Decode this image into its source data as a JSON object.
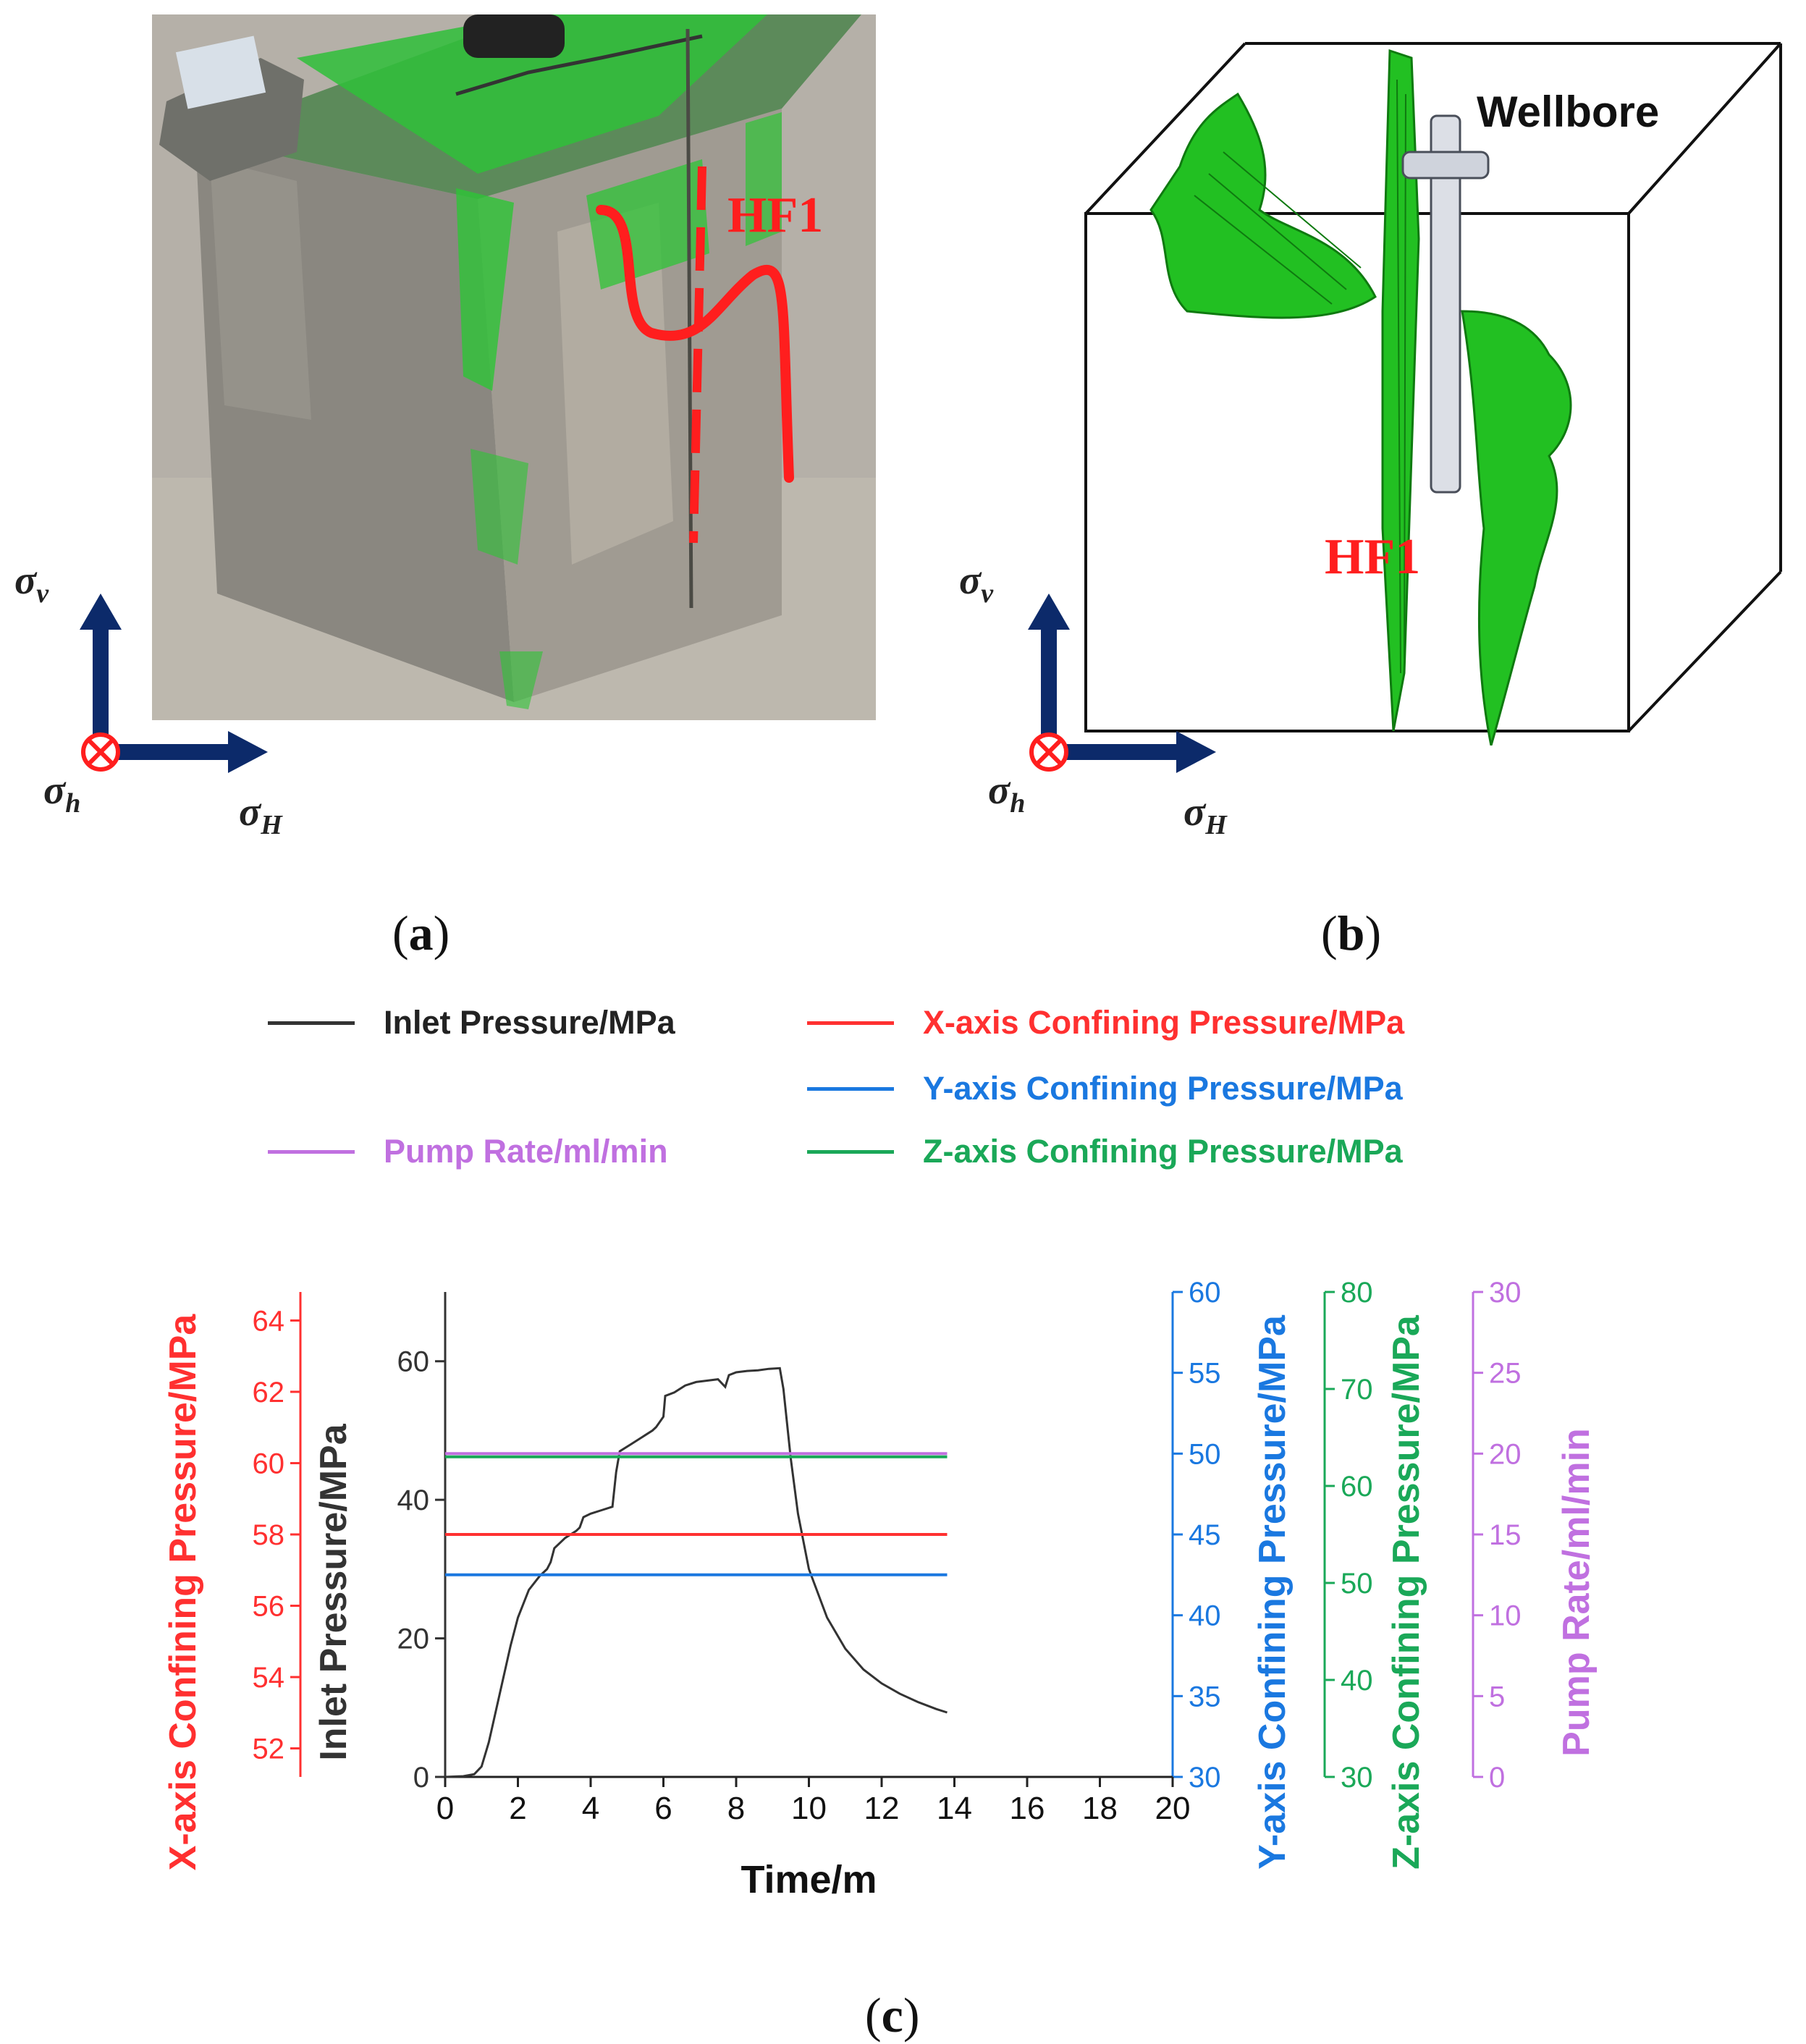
{
  "panels": {
    "a": {
      "letter": "a",
      "hf_label": "HF1",
      "stress": {
        "v": "σ",
        "v_sub": "v",
        "h": "σ",
        "h_sub": "h",
        "H": "σ",
        "H_sub": "H"
      }
    },
    "b": {
      "letter": "b",
      "hf_label": "HF1",
      "wellbore_label": "Wellbore",
      "stress": {
        "v": "σ",
        "v_sub": "v",
        "h": "σ",
        "h_sub": "h",
        "H": "σ",
        "H_sub": "H"
      }
    },
    "c": {
      "letter": "c"
    }
  },
  "colors": {
    "inlet": "#333333",
    "x_axis": "#ff3030",
    "y_axis": "#1a78e0",
    "z_axis": "#1aa858",
    "pump": "#c070e0",
    "hf_red": "#ff1e1e",
    "arrow_blue": "#0c2a6a",
    "green_fracture": "#22c022"
  },
  "legend": [
    {
      "key": "inlet",
      "label": "Inlet Pressure/MPa"
    },
    {
      "key": "x_axis",
      "label": "X-axis Confining Pressure/MPa"
    },
    {
      "key": "y_axis",
      "label": "Y-axis Confining Pressure/MPa"
    },
    {
      "key": "pump",
      "label": "Pump Rate/ml/min"
    },
    {
      "key": "z_axis",
      "label": "Z-axis Confining Pressure/MPa"
    }
  ],
  "chart_data": {
    "type": "line",
    "xlabel": "Time/m",
    "xlim": [
      0,
      20
    ],
    "xticks": [
      0,
      2,
      4,
      6,
      8,
      10,
      12,
      14,
      16,
      18,
      20
    ],
    "axes": {
      "inlet": {
        "label": "Inlet Pressure/MPa",
        "lim": [
          0,
          70
        ],
        "ticks": [
          0,
          20,
          40,
          60
        ]
      },
      "x_axis": {
        "label": "X-axis Confining Pressure/MPa",
        "lim": [
          51.2,
          64.8
        ],
        "ticks": [
          52,
          54,
          56,
          58,
          60,
          62,
          64
        ]
      },
      "y_axis": {
        "label": "Y-axis Confining Pressure/MPa",
        "lim": [
          30,
          60
        ],
        "ticks": [
          30,
          35,
          40,
          45,
          50,
          55,
          60
        ]
      },
      "z_axis": {
        "label": "Z-axis Confining Pressure/MPa",
        "lim": [
          30,
          80
        ],
        "ticks": [
          30,
          40,
          50,
          60,
          70,
          80
        ]
      },
      "pump": {
        "label": "Pump Rate/ml/min",
        "lim": [
          0,
          30
        ],
        "ticks": [
          0,
          5,
          10,
          15,
          20,
          25,
          30
        ]
      }
    },
    "series": [
      {
        "name": "Inlet Pressure/MPa",
        "axis": "inlet",
        "x": [
          0,
          0.5,
          0.8,
          1.0,
          1.2,
          1.5,
          1.8,
          2.0,
          2.3,
          2.6,
          2.8,
          2.9,
          3.0,
          3.3,
          3.6,
          3.7,
          3.8,
          4.0,
          4.3,
          4.6,
          4.7,
          4.8,
          5.1,
          5.4,
          5.7,
          5.8,
          6.0,
          6.05,
          6.3,
          6.6,
          6.9,
          7.2,
          7.5,
          7.7,
          7.8,
          8.0,
          8.3,
          8.6,
          8.9,
          9.2,
          9.3,
          9.5,
          9.7,
          10.0,
          10.5,
          11.0,
          11.5,
          12.0,
          12.5,
          13.0,
          13.5,
          13.8
        ],
        "y": [
          0,
          0.1,
          0.4,
          1.5,
          5,
          12,
          19,
          23,
          27,
          29,
          30,
          31,
          33,
          34.5,
          35.5,
          36,
          37.5,
          38,
          38.5,
          39,
          44,
          47,
          48,
          49,
          50,
          50.5,
          52,
          55,
          55.5,
          56.5,
          57,
          57.2,
          57.4,
          56.3,
          58,
          58.4,
          58.6,
          58.7,
          58.9,
          59,
          56,
          46,
          38,
          30,
          23,
          18.5,
          15.5,
          13.5,
          12,
          10.8,
          9.8,
          9.3
        ]
      },
      {
        "name": "X-axis Confining Pressure/MPa",
        "axis": "x_axis",
        "x": [
          0,
          13.8
        ],
        "y": [
          58,
          58
        ]
      },
      {
        "name": "Y-axis Confining Pressure/MPa",
        "axis": "y_axis",
        "x": [
          0,
          13.8
        ],
        "y": [
          42.5,
          42.5
        ]
      },
      {
        "name": "Z-axis Confining Pressure/MPa",
        "axis": "z_axis",
        "x": [
          0,
          13.8
        ],
        "y": [
          63,
          63
        ]
      },
      {
        "name": "Pump Rate/ml/min",
        "axis": "pump",
        "x": [
          0,
          13.8
        ],
        "y": [
          20,
          20
        ]
      }
    ]
  }
}
